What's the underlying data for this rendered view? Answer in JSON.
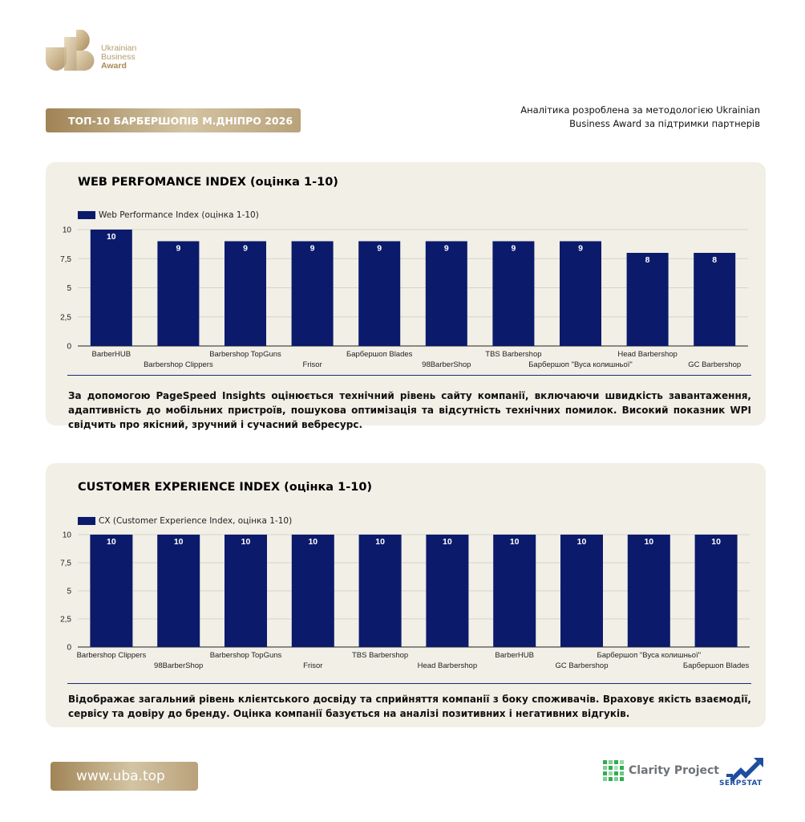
{
  "brand": {
    "logo_line1": "Ukrainian",
    "logo_line2": "Business",
    "logo_line3": "Award",
    "logo_icon": "uba-logo-icon",
    "gold": "#b49c6e"
  },
  "header": {
    "title": "ТОП-10 БАРБЕРШОПІВ М.ДНІПРО 2026",
    "methodology": "Аналітика розроблена за методологією Ukrainian\nBusiness Award за підтримки партнерів"
  },
  "wpi": {
    "title": "WEB PERFOMANCE INDEX (оцінка 1-10)",
    "description": "За допомогою PageSpeed Insights оцінюється технічний рівень сайту компанії, включаючи швидкість завантаження, адаптивність до мобільних пристроїв, пошукова оптимізація та відсутність технічних помилок. Високий показник WPI свідчить про якісний, зручний і сучасний вебресурс."
  },
  "cx": {
    "title": "CUSTOMER EXPERIENCE INDEX (оцінка 1-10)",
    "description": "Відображає загальний рівень клієнтського досвіду та сприйняття компанії з боку споживачів. Враховує якість взаємодії, сервісу та довіру до бренду. Оцінка компанії базується на аналізі позитивних і негативних відгуків."
  },
  "footer": {
    "url": "www.uba.top",
    "partner1": "Clarity Project",
    "partner1_icon": "clarity-project-logo-icon",
    "partner2": "SERPSTAT",
    "partner2_icon": "serpstat-logo-icon"
  },
  "chart_data": [
    {
      "type": "bar",
      "categories": [
        "BarberHUB",
        "Barbershop Clippers",
        "Barbershop TopGuns",
        "Frisor",
        "Барбершоп Blades",
        "98BarberShop",
        "TBS Barbershop",
        "Барбершоп \"Вуса колишньої\"",
        "Head Barbershop",
        "GC Barbershop"
      ],
      "series": [
        {
          "name": "Web Performance Index (оцінка 1-10)",
          "values": [
            10,
            9,
            9,
            9,
            9,
            9,
            9,
            9,
            8,
            8
          ]
        }
      ],
      "ylim": [
        0,
        10
      ],
      "yticks": [
        "0",
        "2,5",
        "5",
        "7,5",
        "10"
      ],
      "data_labels": true,
      "grid": true,
      "legend": "top-left",
      "bar_color": "#0b1a6b"
    },
    {
      "type": "bar",
      "categories": [
        "Barbershop Clippers",
        "98BarberShop",
        "Barbershop TopGuns",
        "Frisor",
        "TBS Barbershop",
        "Head Barbershop",
        "BarberHUB",
        "GC Barbershop",
        "Барбершоп \"Вуса колишньої\"",
        "Барбершоп Blades"
      ],
      "series": [
        {
          "name": "CX (Customer Experience Index, оцінка 1-10)",
          "values": [
            10,
            10,
            10,
            10,
            10,
            10,
            10,
            10,
            10,
            10
          ]
        }
      ],
      "ylim": [
        0,
        10
      ],
      "yticks": [
        "0",
        "2,5",
        "5",
        "7,5",
        "10"
      ],
      "data_labels": true,
      "grid": true,
      "legend": "top-left",
      "bar_color": "#0b1a6b"
    }
  ]
}
